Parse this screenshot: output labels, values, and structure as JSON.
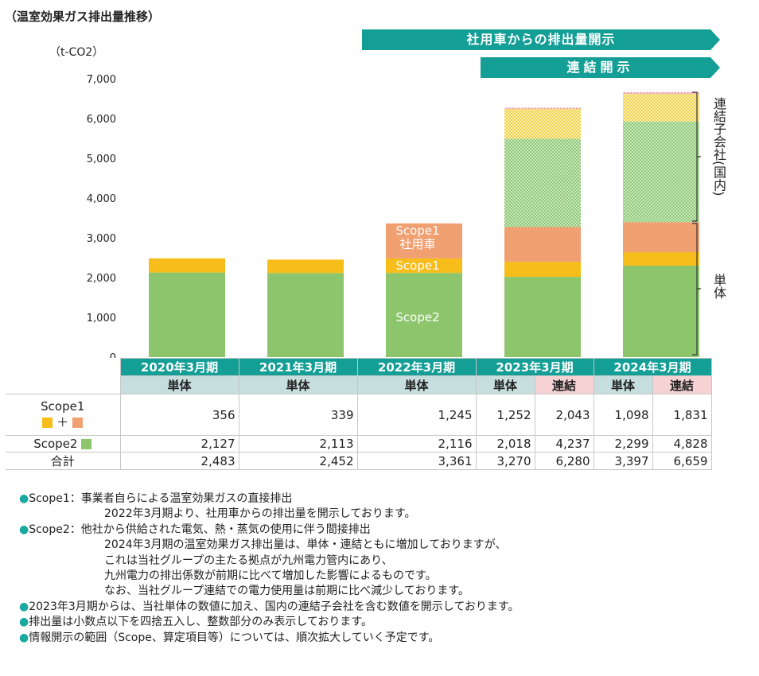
{
  "title": "（温室効果ガス排出量推移）",
  "unit_label": "（t-CO2）",
  "banner_company_cars": "社用車からの排出量開示",
  "banner_consolidated": "連結開示",
  "side_labels": {
    "consolidated_subsidiaries": "連結子会社(国内)",
    "standalone": "単体"
  },
  "bar_labels": {
    "scope1_company_car": "Scope1",
    "scope1_company_car_2": "社用車",
    "scope1": "Scope1",
    "scope2": "Scope2"
  },
  "colors": {
    "scope1": "#f6bd1b",
    "company_car": "#f0a071",
    "scope2": "#8dc56c",
    "teal": "#139e96",
    "subsidiary_scope2": "#b7dca6",
    "subsidiary_scope1": "#f4e17a",
    "subsidiary_car": "#f2b8c0"
  },
  "chart_data": {
    "type": "bar",
    "stacked": true,
    "categories": [
      "2020年3月期",
      "2021年3月期",
      "2022年3月期",
      "2023年3月期",
      "2024年3月期"
    ],
    "yticks": [
      "0",
      "1,000",
      "2,000",
      "3,000",
      "4,000",
      "5,000",
      "6,000",
      "7,000"
    ],
    "ylim": [
      0,
      7000
    ],
    "series": [
      {
        "name": "Scope2",
        "values": [
          2127,
          2113,
          2116,
          2018,
          2299
        ]
      },
      {
        "name": "Scope1",
        "values": [
          356,
          339,
          366,
          380,
          340
        ]
      },
      {
        "name": "Scope1 社用車",
        "values": [
          0,
          0,
          879,
          872,
          758
        ]
      },
      {
        "name": "連結子会社 Scope2",
        "values": [
          0,
          0,
          0,
          2219,
          2529
        ]
      },
      {
        "name": "連結子会社 Scope1",
        "values": [
          0,
          0,
          0,
          751,
          693
        ]
      },
      {
        "name": "連結子会社 社用車",
        "values": [
          0,
          0,
          0,
          40,
          40
        ]
      }
    ]
  },
  "table": {
    "years": [
      "2020年3月期",
      "2021年3月期",
      "2022年3月期",
      "2023年3月期",
      "2024年3月期"
    ],
    "sub_standalone": "単体",
    "sub_consolidated": "連結",
    "row_scope1_label": "Scope1",
    "row_scope1_plus": "＋",
    "row_scope2_label": "Scope2",
    "row_total_label": "合計",
    "scope1": [
      "356",
      "339",
      "1,245",
      "1,252",
      "2,043",
      "1,098",
      "1,831"
    ],
    "scope2": [
      "2,127",
      "2,113",
      "2,116",
      "2,018",
      "4,237",
      "2,299",
      "4,828"
    ],
    "total": [
      "2,483",
      "2,452",
      "3,361",
      "3,270",
      "6,280",
      "3,397",
      "6,659"
    ]
  },
  "notes": [
    {
      "bullet": "●",
      "text": "Scope1：事業者自らによる温室効果ガスの直接排出"
    },
    {
      "bullet": "",
      "text": "2022年3月期より、社用車からの排出量を開示しております。"
    },
    {
      "bullet": "●",
      "text": "Scope2：他社から供給された電気、熱・蒸気の使用に伴う間接排出"
    },
    {
      "bullet": "",
      "text": "2024年3月期の温室効果ガス排出量は、単体・連結ともに増加しておりますが、"
    },
    {
      "bullet": "",
      "text": "これは当社グループの主たる拠点が九州電力管内にあり、"
    },
    {
      "bullet": "",
      "text": "九州電力の排出係数が前期に比べて増加した影響によるものです。"
    },
    {
      "bullet": "",
      "text": "なお、当社グループ連結での電力使用量は前期に比べ減少しております。"
    },
    {
      "bullet": "●",
      "text": "2023年3月期からは、当社単体の数値に加え、国内の連結子会社を含む数値を開示しております。"
    },
    {
      "bullet": "●",
      "text": "排出量は小数点以下を四捨五入し、整数部分のみ表示しております。"
    },
    {
      "bullet": "●",
      "text": "情報開示の範囲（Scope、算定項目等）については、順次拡大していく予定です。"
    }
  ]
}
